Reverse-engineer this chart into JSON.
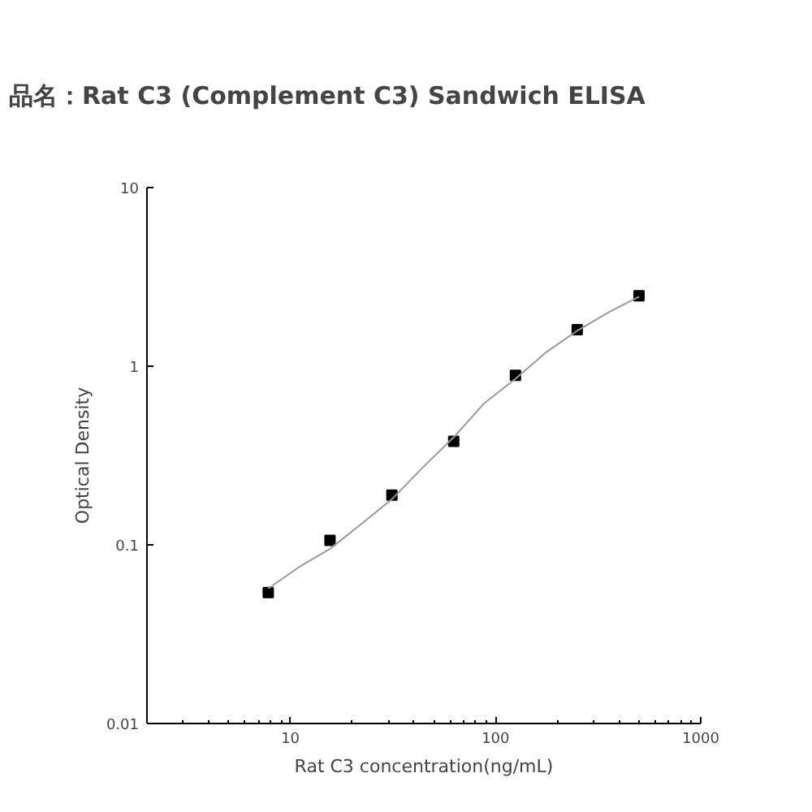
{
  "chart_data": {
    "type": "scatter",
    "title": "品名：Rat C3 (Complement C3) Sandwich ELISA",
    "xlabel": "Rat C3 concentration(ng/mL)",
    "ylabel": "Optical Density",
    "log": "xy",
    "xlim": [
      2,
      1000
    ],
    "ylim": [
      0.01,
      10
    ],
    "xticks": [
      10,
      100,
      1000
    ],
    "yticks": [
      0.01,
      0.1,
      1,
      10
    ],
    "grid": false,
    "marker": "square",
    "series": [
      {
        "color": "#000000",
        "x": [
          7.8,
          15.6,
          31.25,
          62.5,
          125,
          250,
          500
        ],
        "values": [
          0.054,
          0.106,
          0.19,
          0.38,
          0.89,
          1.6,
          2.48
        ]
      },
      {
        "type": "line",
        "color": "#999999",
        "line_style": "solid",
        "marker": "none",
        "x": [
          7.8,
          11,
          15.6,
          22,
          31.25,
          44,
          62.5,
          88,
          125,
          177,
          250,
          354,
          500
        ],
        "values": [
          0.057,
          0.075,
          0.095,
          0.13,
          0.18,
          0.27,
          0.4,
          0.62,
          0.85,
          1.2,
          1.58,
          2.0,
          2.45
        ]
      }
    ]
  }
}
